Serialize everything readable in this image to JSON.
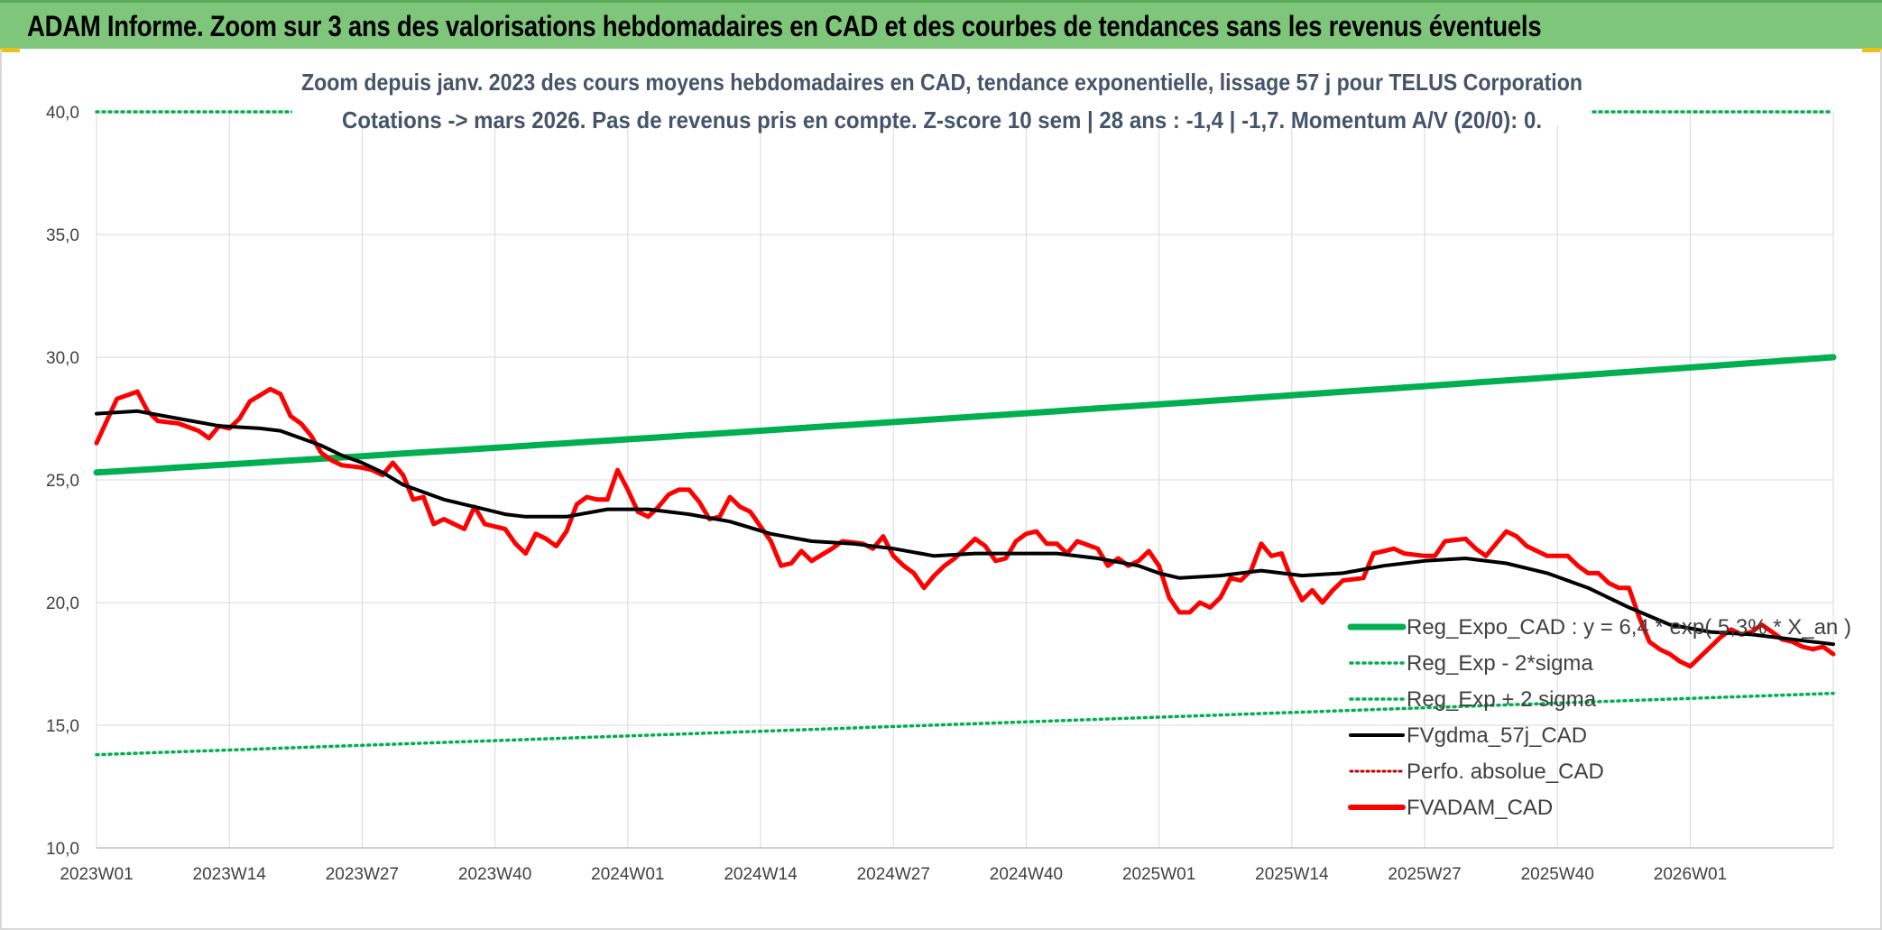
{
  "header": {
    "title": "ADAM Informe. Zoom sur 3 ans des valorisations hebdomadaires en CAD et des courbes de tendances sans les revenus éventuels"
  },
  "chart_data": {
    "type": "line",
    "title_line1": "Zoom depuis janv. 2023 des cours moyens hebdomadaires en CAD, tendance exponentielle, lissage 57 j pour TELUS Corporation",
    "title_line2": "Cotations -> mars 2026. Pas de revenus pris en compte. Z-score 10 sem | 28 ans : -1,4 | -1,7. Momentum A/V (20/0): 0.",
    "ylim": [
      10,
      40
    ],
    "y_ticks": [
      "10,0",
      "15,0",
      "20,0",
      "25,0",
      "30,0",
      "35,0",
      "40,0"
    ],
    "x_ticks": [
      "2023W01",
      "2023W14",
      "2023W27",
      "2023W40",
      "2024W01",
      "2024W14",
      "2024W27",
      "2024W40",
      "2025W01",
      "2025W14",
      "2025W27",
      "2025W40",
      "2026W01"
    ],
    "x_tick_week_index": [
      0,
      13,
      26,
      39,
      52,
      65,
      78,
      91,
      104,
      117,
      130,
      143,
      156
    ],
    "n_weeks": 171,
    "grid": "on",
    "legend_position": "bottom-right",
    "colors": {
      "reg_expo": "#00b050",
      "reg_bands": "#00b050",
      "fvgdma": "#000000",
      "perfo": "#c00000",
      "fvadam": "#ff0000"
    },
    "series": [
      {
        "name": "Reg_Expo_CAD : y = 6,4 * exp( 5,3% * X_an )",
        "key": "reg_expo",
        "style": "solid-thick",
        "endpoints": [
          [
            0,
            25.3
          ],
          [
            170,
            30.0
          ]
        ]
      },
      {
        "name": "Reg_Exp - 2*sigma",
        "key": "reg_lo",
        "style": "dotted",
        "endpoints": [
          [
            0,
            13.8
          ],
          [
            170,
            16.3
          ]
        ]
      },
      {
        "name": "Reg_Exp + 2 sigma",
        "key": "reg_hi",
        "style": "dotted",
        "endpoints": [
          [
            0,
            40.0
          ],
          [
            170,
            40.0
          ]
        ]
      },
      {
        "name": "FVgdma_57j_CAD",
        "key": "fvgdma",
        "style": "solid-black",
        "points": [
          [
            0,
            27.7
          ],
          [
            4,
            27.8
          ],
          [
            8,
            27.5
          ],
          [
            12,
            27.2
          ],
          [
            16,
            27.1
          ],
          [
            18,
            27.0
          ],
          [
            20,
            26.7
          ],
          [
            22,
            26.4
          ],
          [
            24,
            26.0
          ],
          [
            26,
            25.7
          ],
          [
            28,
            25.3
          ],
          [
            30,
            24.8
          ],
          [
            32,
            24.5
          ],
          [
            34,
            24.2
          ],
          [
            36,
            24.0
          ],
          [
            38,
            23.8
          ],
          [
            40,
            23.6
          ],
          [
            42,
            23.5
          ],
          [
            46,
            23.5
          ],
          [
            50,
            23.8
          ],
          [
            54,
            23.8
          ],
          [
            58,
            23.6
          ],
          [
            62,
            23.3
          ],
          [
            66,
            22.8
          ],
          [
            70,
            22.5
          ],
          [
            74,
            22.4
          ],
          [
            78,
            22.2
          ],
          [
            82,
            21.9
          ],
          [
            86,
            22.0
          ],
          [
            90,
            22.0
          ],
          [
            94,
            22.0
          ],
          [
            98,
            21.8
          ],
          [
            102,
            21.5
          ],
          [
            104,
            21.2
          ],
          [
            106,
            21.0
          ],
          [
            110,
            21.1
          ],
          [
            114,
            21.3
          ],
          [
            118,
            21.1
          ],
          [
            122,
            21.2
          ],
          [
            126,
            21.5
          ],
          [
            130,
            21.7
          ],
          [
            134,
            21.8
          ],
          [
            138,
            21.6
          ],
          [
            142,
            21.2
          ],
          [
            146,
            20.6
          ],
          [
            150,
            19.8
          ],
          [
            154,
            19.1
          ],
          [
            158,
            18.8
          ],
          [
            162,
            18.7
          ],
          [
            166,
            18.5
          ],
          [
            170,
            18.3
          ]
        ]
      },
      {
        "name": "Perfo. absolue_CAD",
        "key": "perfo",
        "style": "dotted-red",
        "points": []
      },
      {
        "name": "FVADAM_CAD",
        "key": "fvadam",
        "style": "solid-red",
        "points": [
          [
            0,
            26.5
          ],
          [
            2,
            28.3
          ],
          [
            4,
            28.6
          ],
          [
            5,
            27.8
          ],
          [
            6,
            27.4
          ],
          [
            8,
            27.3
          ],
          [
            10,
            27.0
          ],
          [
            11,
            26.7
          ],
          [
            12,
            27.2
          ],
          [
            13,
            27.1
          ],
          [
            14,
            27.5
          ],
          [
            15,
            28.2
          ],
          [
            17,
            28.7
          ],
          [
            18,
            28.5
          ],
          [
            19,
            27.6
          ],
          [
            20,
            27.3
          ],
          [
            21,
            26.8
          ],
          [
            22,
            26.1
          ],
          [
            23,
            25.8
          ],
          [
            24,
            25.6
          ],
          [
            26,
            25.5
          ],
          [
            27,
            25.4
          ],
          [
            28,
            25.2
          ],
          [
            29,
            25.7
          ],
          [
            30,
            25.2
          ],
          [
            31,
            24.2
          ],
          [
            32,
            24.3
          ],
          [
            33,
            23.2
          ],
          [
            34,
            23.4
          ],
          [
            36,
            23.0
          ],
          [
            37,
            23.9
          ],
          [
            38,
            23.2
          ],
          [
            40,
            23.0
          ],
          [
            41,
            22.4
          ],
          [
            42,
            22.0
          ],
          [
            43,
            22.8
          ],
          [
            44,
            22.6
          ],
          [
            45,
            22.3
          ],
          [
            46,
            22.9
          ],
          [
            47,
            24.0
          ],
          [
            48,
            24.3
          ],
          [
            49,
            24.2
          ],
          [
            50,
            24.2
          ],
          [
            51,
            25.4
          ],
          [
            52,
            24.6
          ],
          [
            53,
            23.7
          ],
          [
            54,
            23.5
          ],
          [
            55,
            23.9
          ],
          [
            56,
            24.4
          ],
          [
            57,
            24.6
          ],
          [
            58,
            24.6
          ],
          [
            59,
            24.1
          ],
          [
            60,
            23.4
          ],
          [
            61,
            23.5
          ],
          [
            62,
            24.3
          ],
          [
            63,
            23.9
          ],
          [
            64,
            23.7
          ],
          [
            65,
            23.1
          ],
          [
            66,
            22.5
          ],
          [
            67,
            21.5
          ],
          [
            68,
            21.6
          ],
          [
            69,
            22.1
          ],
          [
            70,
            21.7
          ],
          [
            72,
            22.2
          ],
          [
            73,
            22.5
          ],
          [
            75,
            22.4
          ],
          [
            76,
            22.2
          ],
          [
            77,
            22.7
          ],
          [
            78,
            21.9
          ],
          [
            79,
            21.5
          ],
          [
            80,
            21.2
          ],
          [
            81,
            20.6
          ],
          [
            82,
            21.1
          ],
          [
            83,
            21.5
          ],
          [
            84,
            21.8
          ],
          [
            85,
            22.2
          ],
          [
            86,
            22.6
          ],
          [
            87,
            22.3
          ],
          [
            88,
            21.7
          ],
          [
            89,
            21.8
          ],
          [
            90,
            22.5
          ],
          [
            91,
            22.8
          ],
          [
            92,
            22.9
          ],
          [
            93,
            22.4
          ],
          [
            94,
            22.4
          ],
          [
            95,
            22.0
          ],
          [
            96,
            22.5
          ],
          [
            98,
            22.2
          ],
          [
            99,
            21.5
          ],
          [
            100,
            21.8
          ],
          [
            101,
            21.5
          ],
          [
            102,
            21.7
          ],
          [
            103,
            22.1
          ],
          [
            104,
            21.5
          ],
          [
            105,
            20.2
          ],
          [
            106,
            19.6
          ],
          [
            107,
            19.6
          ],
          [
            108,
            20.0
          ],
          [
            109,
            19.8
          ],
          [
            110,
            20.2
          ],
          [
            111,
            21.0
          ],
          [
            112,
            20.9
          ],
          [
            113,
            21.3
          ],
          [
            114,
            22.4
          ],
          [
            115,
            21.9
          ],
          [
            116,
            22.0
          ],
          [
            117,
            20.9
          ],
          [
            118,
            20.1
          ],
          [
            119,
            20.5
          ],
          [
            120,
            20.0
          ],
          [
            121,
            20.5
          ],
          [
            122,
            20.9
          ],
          [
            124,
            21.0
          ],
          [
            125,
            22.0
          ],
          [
            126,
            22.1
          ],
          [
            127,
            22.2
          ],
          [
            128,
            22.0
          ],
          [
            130,
            21.9
          ],
          [
            131,
            21.9
          ],
          [
            132,
            22.5
          ],
          [
            134,
            22.6
          ],
          [
            135,
            22.2
          ],
          [
            136,
            21.9
          ],
          [
            137,
            22.4
          ],
          [
            138,
            22.9
          ],
          [
            139,
            22.7
          ],
          [
            140,
            22.3
          ],
          [
            141,
            22.1
          ],
          [
            142,
            21.9
          ],
          [
            144,
            21.9
          ],
          [
            145,
            21.5
          ],
          [
            146,
            21.2
          ],
          [
            147,
            21.2
          ],
          [
            148,
            20.8
          ],
          [
            149,
            20.6
          ],
          [
            150,
            20.6
          ],
          [
            151,
            19.4
          ],
          [
            152,
            18.4
          ],
          [
            153,
            18.1
          ],
          [
            154,
            17.9
          ],
          [
            155,
            17.6
          ],
          [
            156,
            17.4
          ],
          [
            157,
            17.8
          ],
          [
            158,
            18.2
          ],
          [
            159,
            18.6
          ],
          [
            160,
            18.9
          ],
          [
            161,
            18.7
          ],
          [
            162,
            18.8
          ],
          [
            163,
            19.1
          ],
          [
            164,
            18.8
          ],
          [
            165,
            18.5
          ],
          [
            166,
            18.4
          ],
          [
            167,
            18.2
          ],
          [
            168,
            18.1
          ],
          [
            169,
            18.2
          ],
          [
            170,
            17.9
          ]
        ]
      }
    ]
  }
}
